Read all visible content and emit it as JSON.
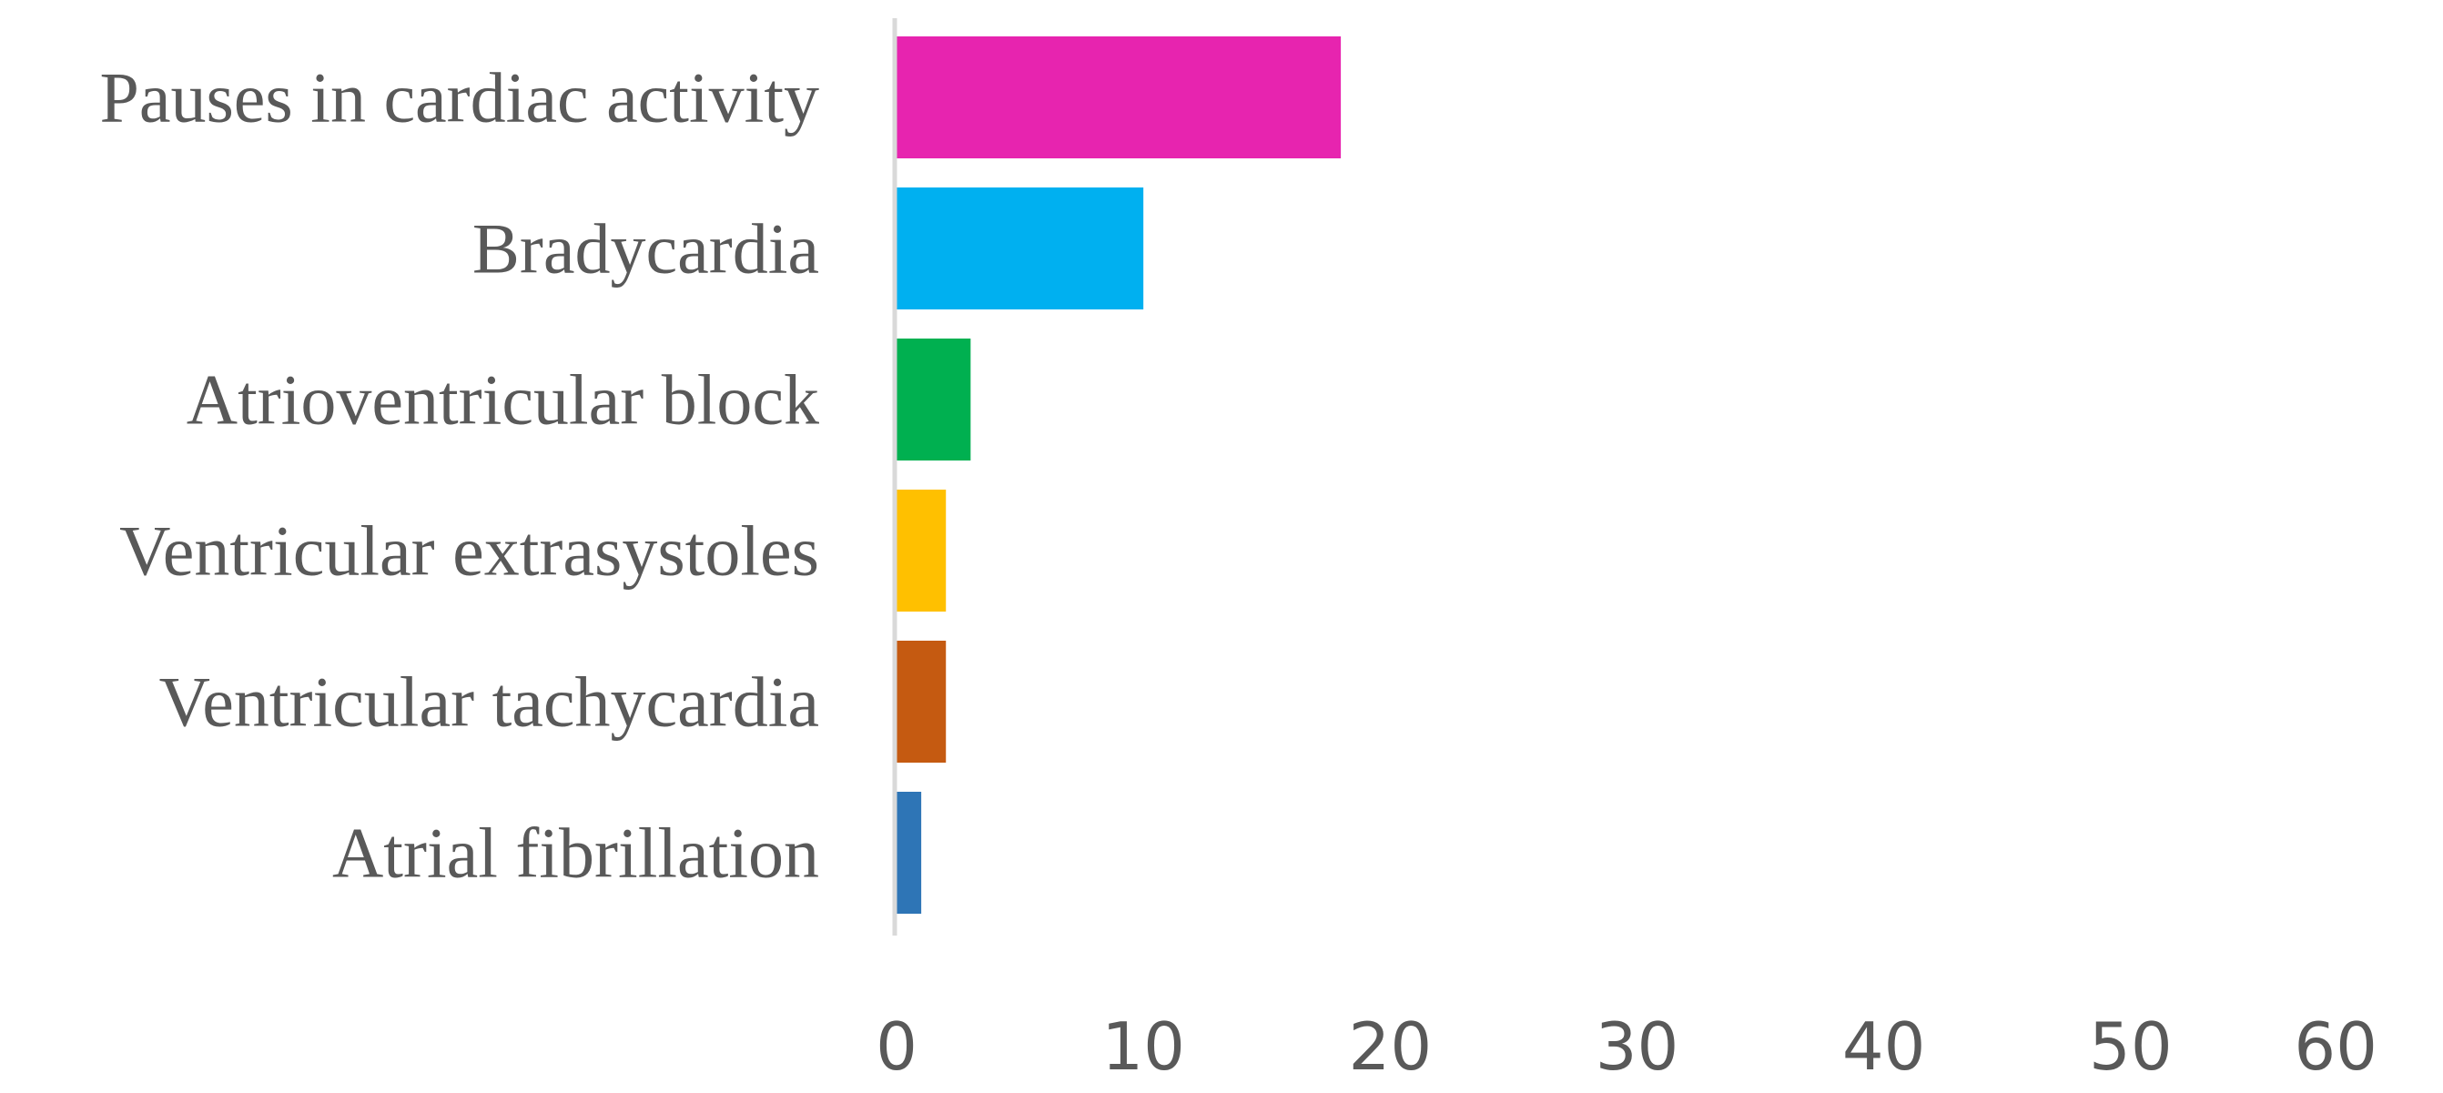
{
  "chart_data": {
    "type": "bar",
    "orientation": "horizontal",
    "title": "",
    "xlabel": "",
    "ylabel": "",
    "categories": [
      "Pauses in cardiac activity",
      "Bradycardia",
      "Atrioventricular block",
      "Ventricular extrasystoles",
      "Ventricular tachycardia",
      "Atrial fibrillation"
    ],
    "values": [
      18,
      10,
      3,
      2,
      2,
      1
    ],
    "colors": [
      "#E724AF",
      "#00B0F0",
      "#00B050",
      "#FFC000",
      "#C55A11",
      "#2E75B6"
    ],
    "xlim": [
      0,
      60
    ],
    "xticks": [
      "0",
      "10",
      "20",
      "30",
      "40",
      "50",
      "60"
    ],
    "grid": false,
    "legend": "none"
  }
}
